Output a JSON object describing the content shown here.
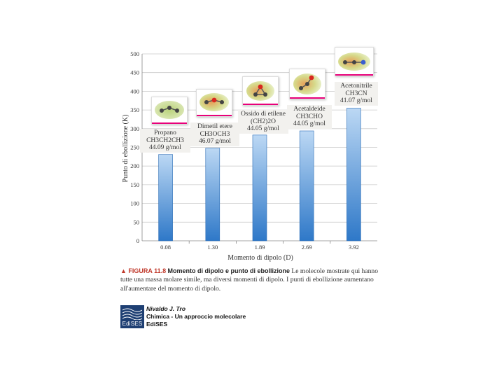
{
  "chart_data": {
    "type": "bar",
    "ylabel": "Punto di ebollizione (K)",
    "xlabel": "Momento di dipolo (D)",
    "ylim": [
      0,
      500
    ],
    "yticks": [
      "0",
      "50",
      "100",
      "150",
      "200",
      "250",
      "300",
      "350",
      "400",
      "450",
      "500"
    ],
    "categories": [
      "0.08",
      "1.30",
      "1.89",
      "2.69",
      "3.92"
    ],
    "values": [
      231,
      248,
      283,
      294,
      355
    ],
    "grid": "horizontal",
    "molecules": [
      {
        "name": "Propano",
        "formula": "CH3CH2CH3",
        "mass": "44.09 g/mol"
      },
      {
        "name": "Dimetil etere",
        "formula": "CH3OCH3",
        "mass": "46.07 g/mol"
      },
      {
        "name": "Ossido di etilene",
        "formula": "(CH2)2O",
        "mass": "44.05 g/mol"
      },
      {
        "name": "Acetaldeide",
        "formula": "CH3CHO",
        "mass": "44.05 g/mol"
      },
      {
        "name": "Acetonitrile",
        "formula": "CH3CN",
        "mass": "41.07 g/mol"
      }
    ]
  },
  "caption": {
    "figure": "▲ FIGURA 11.8",
    "title": "Momento di dipolo e punto di ebollizione",
    "text": "Le molecole mostrate qui hanno tutte una massa molare simile, ma diversi momenti di dipolo. I punti di ebollizione aumentano all'aumentare del momento di dipolo."
  },
  "publisher": {
    "logo_text": "EdiSES",
    "author": "Nivaldo J. Tro",
    "book_title": "Chimica - Un approccio molecolare",
    "brand": "EdiSES"
  },
  "colors": {
    "bar_light": "#a9cbee",
    "bar_dark": "#2e78c8",
    "grid": "#c9c9c9",
    "accent": "#e8007a"
  }
}
